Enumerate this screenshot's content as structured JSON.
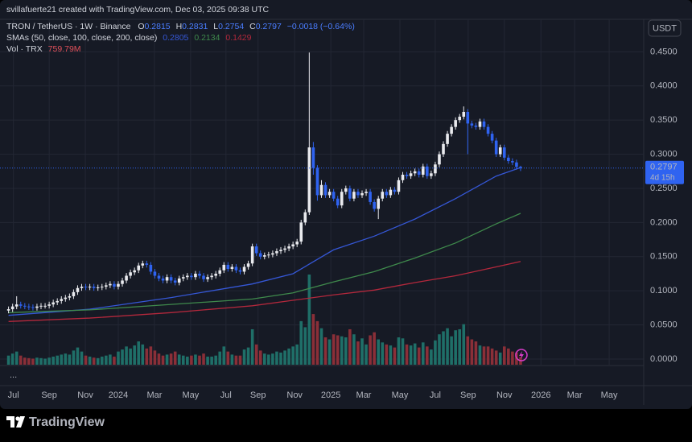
{
  "header": {
    "author_line": "svillafuerte21 created with TradingView.com, Dec 03, 2025 09:38 UTC",
    "currency": "USDT",
    "more": "...",
    "brand": "TradingView"
  },
  "chart_data": {
    "type": "candlestick",
    "title": "TRON / TetherUS · 1W · Binance",
    "ohlc_letters": {
      "open": "O",
      "high": "H",
      "low": "L",
      "close": "C"
    },
    "change": "−0.0018 (−0.64%)",
    "up_color": "#e9eaee",
    "down_color": "#2f63f0",
    "x": [
      0,
      1,
      2,
      3,
      4,
      5,
      6,
      7,
      8,
      9,
      10,
      11,
      12,
      13,
      14,
      15,
      16,
      17,
      18,
      19,
      20,
      21,
      22,
      23,
      24,
      25,
      26,
      27,
      28,
      29,
      30,
      31,
      32,
      33,
      34,
      35,
      36,
      37,
      38,
      39,
      40,
      41,
      42,
      43,
      44,
      45,
      46,
      47,
      48,
      49,
      50,
      51,
      52,
      53,
      54,
      55,
      56,
      57,
      58,
      59,
      60,
      61,
      62,
      63,
      64,
      65,
      66,
      67,
      68,
      69,
      70,
      71,
      72,
      73,
      74,
      75,
      76,
      77,
      78,
      79,
      80,
      81,
      82,
      83,
      84,
      85,
      86,
      87,
      88,
      89,
      90,
      91,
      92,
      93,
      94,
      95,
      96,
      97,
      98,
      99,
      100,
      101,
      102,
      103,
      104,
      105,
      106,
      107,
      108,
      109,
      110,
      111,
      112,
      113,
      114,
      115,
      116,
      117,
      118,
      119,
      120,
      121,
      122,
      123,
      124,
      125,
      126
    ],
    "open": [
      0.071,
      0.073,
      0.077,
      0.08,
      0.078,
      0.077,
      0.076,
      0.075,
      0.077,
      0.078,
      0.078,
      0.08,
      0.083,
      0.085,
      0.088,
      0.09,
      0.092,
      0.098,
      0.104,
      0.106,
      0.105,
      0.106,
      0.104,
      0.105,
      0.106,
      0.108,
      0.11,
      0.106,
      0.11,
      0.115,
      0.122,
      0.127,
      0.13,
      0.137,
      0.14,
      0.138,
      0.128,
      0.122,
      0.118,
      0.115,
      0.12,
      0.115,
      0.112,
      0.118,
      0.12,
      0.122,
      0.12,
      0.125,
      0.122,
      0.117,
      0.12,
      0.122,
      0.125,
      0.13,
      0.138,
      0.132,
      0.135,
      0.13,
      0.128,
      0.135,
      0.14,
      0.165,
      0.155,
      0.15,
      0.152,
      0.153,
      0.155,
      0.158,
      0.16,
      0.162,
      0.165,
      0.168,
      0.172,
      0.2,
      0.215,
      0.31,
      0.28,
      0.24,
      0.255,
      0.24,
      0.245,
      0.235,
      0.225,
      0.245,
      0.25,
      0.235,
      0.245,
      0.24,
      0.243,
      0.245,
      0.23,
      0.22,
      0.235,
      0.245,
      0.24,
      0.248,
      0.245,
      0.262,
      0.27,
      0.268,
      0.272,
      0.275,
      0.27,
      0.282,
      0.268,
      0.272,
      0.285,
      0.3,
      0.315,
      0.33,
      0.34,
      0.35,
      0.355,
      0.362,
      0.345,
      0.342,
      0.34,
      0.348,
      0.34,
      0.33,
      0.32,
      0.3,
      0.31,
      0.295,
      0.29,
      0.288,
      0.2815
    ],
    "high": [
      0.077,
      0.081,
      0.092,
      0.084,
      0.082,
      0.081,
      0.08,
      0.081,
      0.082,
      0.082,
      0.084,
      0.087,
      0.089,
      0.092,
      0.094,
      0.096,
      0.102,
      0.108,
      0.11,
      0.11,
      0.11,
      0.11,
      0.109,
      0.11,
      0.112,
      0.114,
      0.114,
      0.114,
      0.119,
      0.126,
      0.131,
      0.134,
      0.141,
      0.144,
      0.144,
      0.142,
      0.132,
      0.126,
      0.122,
      0.124,
      0.124,
      0.119,
      0.122,
      0.124,
      0.126,
      0.126,
      0.129,
      0.129,
      0.126,
      0.124,
      0.126,
      0.129,
      0.134,
      0.142,
      0.142,
      0.139,
      0.139,
      0.134,
      0.139,
      0.144,
      0.169,
      0.169,
      0.159,
      0.156,
      0.157,
      0.159,
      0.162,
      0.164,
      0.166,
      0.169,
      0.172,
      0.176,
      0.204,
      0.219,
      0.449,
      0.318,
      0.284,
      0.262,
      0.259,
      0.249,
      0.249,
      0.239,
      0.249,
      0.254,
      0.254,
      0.249,
      0.249,
      0.247,
      0.249,
      0.249,
      0.234,
      0.239,
      0.249,
      0.249,
      0.252,
      0.252,
      0.266,
      0.274,
      0.274,
      0.276,
      0.279,
      0.279,
      0.286,
      0.286,
      0.276,
      0.289,
      0.304,
      0.319,
      0.334,
      0.344,
      0.354,
      0.359,
      0.37,
      0.366,
      0.349,
      0.346,
      0.352,
      0.352,
      0.344,
      0.334,
      0.324,
      0.314,
      0.314,
      0.299,
      0.294,
      0.292,
      0.2831
    ],
    "low": [
      0.067,
      0.069,
      0.073,
      0.074,
      0.073,
      0.072,
      0.071,
      0.071,
      0.073,
      0.074,
      0.074,
      0.076,
      0.079,
      0.081,
      0.084,
      0.086,
      0.088,
      0.094,
      0.1,
      0.101,
      0.101,
      0.1,
      0.1,
      0.101,
      0.102,
      0.104,
      0.102,
      0.102,
      0.106,
      0.111,
      0.118,
      0.123,
      0.126,
      0.133,
      0.134,
      0.124,
      0.118,
      0.114,
      0.111,
      0.111,
      0.111,
      0.108,
      0.108,
      0.114,
      0.116,
      0.116,
      0.116,
      0.118,
      0.113,
      0.113,
      0.116,
      0.118,
      0.121,
      0.126,
      0.128,
      0.128,
      0.126,
      0.124,
      0.124,
      0.131,
      0.136,
      0.151,
      0.146,
      0.146,
      0.148,
      0.149,
      0.151,
      0.154,
      0.156,
      0.158,
      0.161,
      0.164,
      0.168,
      0.196,
      0.211,
      0.27,
      0.232,
      0.236,
      0.236,
      0.236,
      0.231,
      0.221,
      0.221,
      0.241,
      0.231,
      0.231,
      0.236,
      0.236,
      0.239,
      0.226,
      0.216,
      0.205,
      0.231,
      0.236,
      0.236,
      0.241,
      0.241,
      0.258,
      0.264,
      0.264,
      0.268,
      0.266,
      0.266,
      0.264,
      0.264,
      0.268,
      0.281,
      0.296,
      0.311,
      0.326,
      0.336,
      0.346,
      0.351,
      0.3,
      0.338,
      0.336,
      0.336,
      0.336,
      0.326,
      0.316,
      0.296,
      0.296,
      0.291,
      0.286,
      0.284,
      0.2775,
      0.2754
    ],
    "close": [
      0.073,
      0.077,
      0.08,
      0.078,
      0.077,
      0.076,
      0.075,
      0.077,
      0.078,
      0.078,
      0.08,
      0.083,
      0.085,
      0.088,
      0.09,
      0.092,
      0.098,
      0.104,
      0.106,
      0.105,
      0.106,
      0.104,
      0.105,
      0.106,
      0.108,
      0.11,
      0.106,
      0.11,
      0.115,
      0.122,
      0.127,
      0.13,
      0.137,
      0.14,
      0.138,
      0.128,
      0.122,
      0.118,
      0.115,
      0.12,
      0.115,
      0.112,
      0.118,
      0.12,
      0.122,
      0.12,
      0.125,
      0.122,
      0.117,
      0.12,
      0.122,
      0.125,
      0.13,
      0.138,
      0.132,
      0.135,
      0.13,
      0.128,
      0.135,
      0.14,
      0.165,
      0.155,
      0.15,
      0.152,
      0.153,
      0.155,
      0.158,
      0.16,
      0.162,
      0.165,
      0.168,
      0.172,
      0.2,
      0.215,
      0.31,
      0.28,
      0.24,
      0.255,
      0.24,
      0.245,
      0.235,
      0.225,
      0.245,
      0.25,
      0.235,
      0.245,
      0.24,
      0.243,
      0.245,
      0.23,
      0.22,
      0.235,
      0.245,
      0.24,
      0.248,
      0.245,
      0.262,
      0.27,
      0.268,
      0.272,
      0.275,
      0.27,
      0.282,
      0.268,
      0.272,
      0.285,
      0.3,
      0.315,
      0.33,
      0.34,
      0.35,
      0.355,
      0.362,
      0.345,
      0.342,
      0.34,
      0.348,
      0.34,
      0.33,
      0.32,
      0.3,
      0.31,
      0.295,
      0.29,
      0.288,
      0.2815,
      0.2797
    ],
    "overlay_title": "SMAs (50, close, 100, close, 200, close)",
    "series": [
      {
        "color": "#3557d6",
        "x": [
          0,
          20,
          40,
          60,
          70,
          80,
          90,
          100,
          110,
          120,
          126
        ],
        "values": [
          0.064,
          0.073,
          0.09,
          0.11,
          0.125,
          0.16,
          0.18,
          0.205,
          0.235,
          0.268,
          0.2805
        ]
      },
      {
        "color": "#3f8a4c",
        "x": [
          0,
          20,
          40,
          60,
          70,
          80,
          90,
          100,
          110,
          120,
          126
        ],
        "values": [
          0.068,
          0.072,
          0.08,
          0.088,
          0.097,
          0.113,
          0.128,
          0.148,
          0.17,
          0.198,
          0.2134
        ]
      },
      {
        "color": "#b3283c",
        "x": [
          0,
          20,
          40,
          60,
          70,
          80,
          90,
          100,
          110,
          120,
          126
        ],
        "values": [
          0.055,
          0.06,
          0.068,
          0.078,
          0.086,
          0.094,
          0.101,
          0.112,
          0.122,
          0.135,
          0.1429
        ]
      }
    ],
    "volume": {
      "title": "Vol · TRX",
      "label": "759.79M",
      "up_color": "#1f6f68",
      "down_color": "#8a2f38",
      "values": [
        900,
        1100,
        1300,
        900,
        700,
        650,
        600,
        700,
        650,
        600,
        700,
        800,
        900,
        1000,
        1100,
        1000,
        1400,
        1700,
        1300,
        900,
        800,
        700,
        650,
        800,
        900,
        1000,
        800,
        1300,
        1500,
        1800,
        1600,
        1900,
        2300,
        2000,
        1600,
        1800,
        1400,
        1100,
        900,
        1000,
        1100,
        1300,
        1000,
        900,
        800,
        900,
        1000,
        900,
        1100,
        800,
        800,
        900,
        1300,
        1800,
        1300,
        1000,
        900,
        900,
        1500,
        1700,
        3500,
        2000,
        1400,
        1100,
        1000,
        1100,
        1300,
        1200,
        1400,
        1600,
        1800,
        2000,
        4300,
        3700,
        8900,
        5000,
        4300,
        3600,
        2700,
        2500,
        3000,
        2900,
        2800,
        2700,
        3500,
        3000,
        2300,
        2600,
        2000,
        2900,
        3200,
        2500,
        2200,
        2000,
        1900,
        1700,
        2700,
        2600,
        2000,
        1900,
        2100,
        1700,
        2200,
        1800,
        1500,
        2400,
        3000,
        3300,
        3600,
        2800,
        3400,
        3500,
        4000,
        2800,
        2500,
        2300,
        1900,
        1800,
        1800,
        1600,
        1400,
        1200,
        1800,
        1600,
        1300,
        1200,
        759.79
      ]
    },
    "countdown": "4d 15h",
    "xlim": [
      -2.1,
      156.3
    ],
    "xticks": [
      {
        "value": 1.2,
        "label": "Jul"
      },
      {
        "value": 10.0,
        "label": "Sep"
      },
      {
        "value": 18.9,
        "label": "Nov"
      },
      {
        "value": 27.0,
        "label": "2024"
      },
      {
        "value": 35.9,
        "label": "Mar"
      },
      {
        "value": 44.8,
        "label": "May"
      },
      {
        "value": 53.5,
        "label": "Jul"
      },
      {
        "value": 61.4,
        "label": "Sep"
      },
      {
        "value": 70.4,
        "label": "Nov"
      },
      {
        "value": 79.3,
        "label": "2025"
      },
      {
        "value": 87.4,
        "label": "Mar"
      },
      {
        "value": 96.3,
        "label": "May"
      },
      {
        "value": 105.0,
        "label": "Jul"
      },
      {
        "value": 113.1,
        "label": "Sep"
      },
      {
        "value": 122.0,
        "label": "Nov"
      },
      {
        "value": 131.0,
        "label": "2026"
      },
      {
        "value": 139.3,
        "label": "Mar"
      },
      {
        "value": 147.8,
        "label": "May"
      }
    ],
    "ylim": [
      -0.0083,
      0.4976
    ],
    "yticks": [
      {
        "value": 0,
        "label": "0.0000"
      },
      {
        "value": 0.05,
        "label": "0.0500"
      },
      {
        "value": 0.1,
        "label": "0.1000"
      },
      {
        "value": 0.15,
        "label": "0.1500"
      },
      {
        "value": 0.2,
        "label": "0.2000"
      },
      {
        "value": 0.25,
        "label": "0.2500"
      },
      {
        "value": 0.3,
        "label": "0.3000"
      },
      {
        "value": 0.35,
        "label": "0.3500"
      },
      {
        "value": 0.4,
        "label": "0.4000"
      },
      {
        "value": 0.45,
        "label": "0.4500"
      }
    ],
    "grid": true
  }
}
